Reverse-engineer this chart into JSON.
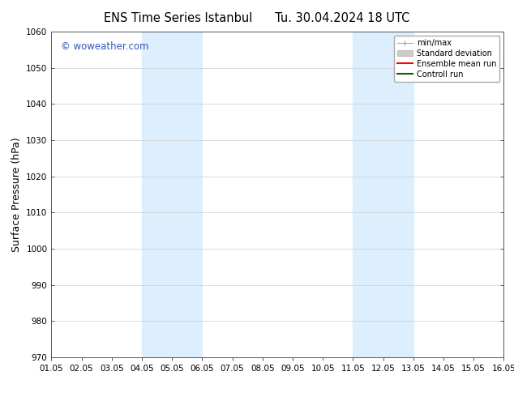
{
  "title1": "ENS Time Series Istanbul",
  "title2": "Tu. 30.04.2024 18 UTC",
  "ylabel": "Surface Pressure (hPa)",
  "ylim": [
    970,
    1060
  ],
  "yticks": [
    970,
    980,
    990,
    1000,
    1010,
    1020,
    1030,
    1040,
    1050,
    1060
  ],
  "xlim": [
    0,
    15
  ],
  "xtick_labels": [
    "01.05",
    "02.05",
    "03.05",
    "04.05",
    "05.05",
    "06.05",
    "07.05",
    "08.05",
    "09.05",
    "10.05",
    "11.05",
    "12.05",
    "13.05",
    "14.05",
    "15.05",
    "16.05"
  ],
  "shaded_bands": [
    {
      "xmin": 3.0,
      "xmax": 5.0,
      "color": "#ddeeff"
    },
    {
      "xmin": 10.0,
      "xmax": 12.0,
      "color": "#ddeeff"
    }
  ],
  "watermark": "© woweather.com",
  "watermark_color": "#3355bb",
  "background_color": "#ffffff",
  "legend_items": [
    {
      "label": "min/max",
      "color": "#aaaaaa",
      "linestyle": "-",
      "linewidth": 1
    },
    {
      "label": "Standard deviation",
      "color": "#cccccc",
      "linestyle": "-",
      "linewidth": 6
    },
    {
      "label": "Ensemble mean run",
      "color": "#ff0000",
      "linestyle": "-",
      "linewidth": 1.5
    },
    {
      "label": "Controll run",
      "color": "#006600",
      "linestyle": "-",
      "linewidth": 1.5
    }
  ],
  "grid_color": "#cccccc",
  "tick_label_fontsize": 7.5,
  "axis_label_fontsize": 9,
  "title_fontsize": 10.5
}
